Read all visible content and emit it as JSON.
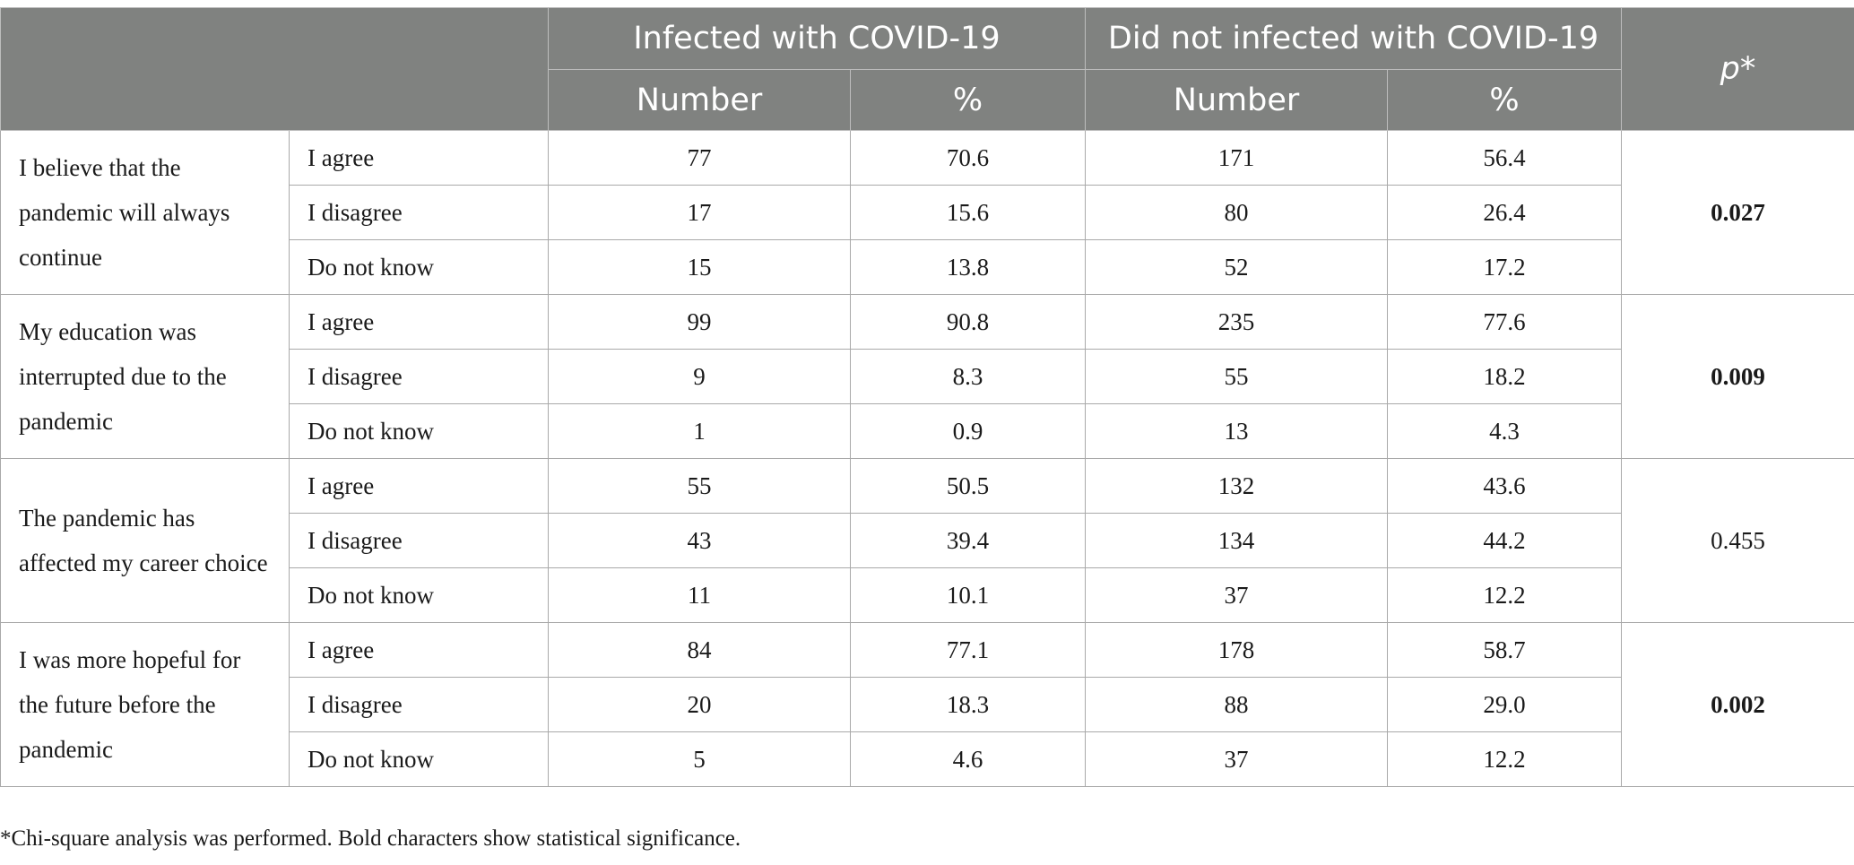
{
  "table": {
    "header": {
      "group_infected": "Infected with COVID-19",
      "group_not_infected": "Did not infected with COVID-19",
      "p_label": "p*",
      "sub_number": "Number",
      "sub_percent": "%"
    },
    "blocks": [
      {
        "statement": "I believe that the pandemic will always continue",
        "p": "0.027",
        "significant": true,
        "rows": [
          {
            "response": "I agree",
            "inf_n": "77",
            "inf_pct": "70.6",
            "non_n": "171",
            "non_pct": "56.4"
          },
          {
            "response": "I disagree",
            "inf_n": "17",
            "inf_pct": "15.6",
            "non_n": "80",
            "non_pct": "26.4"
          },
          {
            "response": "Do not know",
            "inf_n": "15",
            "inf_pct": "13.8",
            "non_n": "52",
            "non_pct": "17.2"
          }
        ]
      },
      {
        "statement": "My education was interrupted due to the pandemic",
        "p": "0.009",
        "significant": true,
        "rows": [
          {
            "response": "I agree",
            "inf_n": "99",
            "inf_pct": "90.8",
            "non_n": "235",
            "non_pct": "77.6"
          },
          {
            "response": "I disagree",
            "inf_n": "9",
            "inf_pct": "8.3",
            "non_n": "55",
            "non_pct": "18.2"
          },
          {
            "response": "Do not know",
            "inf_n": "1",
            "inf_pct": "0.9",
            "non_n": "13",
            "non_pct": "4.3"
          }
        ]
      },
      {
        "statement": "The pandemic has affected my career choice",
        "p": "0.455",
        "significant": false,
        "rows": [
          {
            "response": "I agree",
            "inf_n": "55",
            "inf_pct": "50.5",
            "non_n": "132",
            "non_pct": "43.6"
          },
          {
            "response": "I disagree",
            "inf_n": "43",
            "inf_pct": "39.4",
            "non_n": "134",
            "non_pct": "44.2"
          },
          {
            "response": "Do not know",
            "inf_n": "11",
            "inf_pct": "10.1",
            "non_n": "37",
            "non_pct": "12.2"
          }
        ]
      },
      {
        "statement": "I was more hopeful for the future before the pandemic",
        "p": "0.002",
        "significant": true,
        "rows": [
          {
            "response": "I agree",
            "inf_n": "84",
            "inf_pct": "77.1",
            "non_n": "178",
            "non_pct": "58.7"
          },
          {
            "response": "I disagree",
            "inf_n": "20",
            "inf_pct": "18.3",
            "non_n": "88",
            "non_pct": "29.0"
          },
          {
            "response": "Do not know",
            "inf_n": "5",
            "inf_pct": "4.6",
            "non_n": "37",
            "non_pct": "12.2"
          }
        ]
      }
    ]
  },
  "footnote": "*Chi-square analysis was performed. Bold characters show statistical significance."
}
